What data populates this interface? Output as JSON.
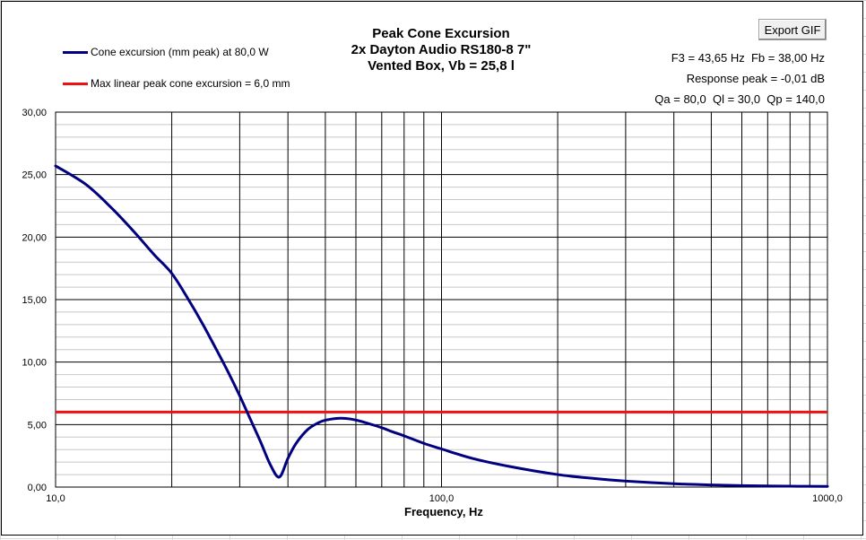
{
  "toolbar": {
    "export_label": "Export GIF"
  },
  "info": {
    "line1": "F3 = 43,65 Hz  Fb = 38,00 Hz",
    "line2": "Response peak = -0,01 dB",
    "line3": "Qa = 80,0  Ql = 30,0  Qp = 140,0"
  },
  "colors": {
    "excursion": "#000080",
    "max_linear": "#ee1111",
    "grid_major": "#000000",
    "grid_minor": "#c8c8c8"
  },
  "chart_data": {
    "type": "line",
    "title": "Peak Cone Excursion",
    "subtitle_lines": [
      "2x Dayton Audio RS180-8 7\"",
      "Vented Box, Vb = 25,8 l"
    ],
    "xlabel": "Frequency, Hz",
    "ylabel": "",
    "x_scale": "log",
    "xlim": [
      10,
      1000
    ],
    "ylim": [
      0,
      30
    ],
    "x_tick_labels": [
      "10,0",
      "100,0",
      "1000,0"
    ],
    "x_tick_values": [
      10,
      100,
      1000
    ],
    "y_tick_labels": [
      "0,00",
      "5,00",
      "10,00",
      "15,00",
      "20,00",
      "25,00",
      "30,00"
    ],
    "y_tick_values": [
      0,
      5,
      10,
      15,
      20,
      25,
      30
    ],
    "grid": true,
    "legend_position": "top-left",
    "series": [
      {
        "name": "Cone excursion (mm peak) at 80,0  W",
        "x": [
          10,
          12,
          14,
          16,
          18,
          20,
          22,
          24,
          26,
          28,
          30,
          32,
          34,
          36,
          38,
          40,
          42,
          45,
          48,
          50,
          54,
          58,
          62,
          66,
          70,
          75,
          80,
          90,
          100,
          120,
          150,
          200,
          250,
          300,
          400,
          500,
          600,
          700,
          800,
          1000
        ],
        "y": [
          25.7,
          24.2,
          22.3,
          20.4,
          18.6,
          17.1,
          15.1,
          13.1,
          11.1,
          9.2,
          7.3,
          5.4,
          3.6,
          1.8,
          0.8,
          2.3,
          3.5,
          4.6,
          5.15,
          5.35,
          5.5,
          5.45,
          5.25,
          5.0,
          4.75,
          4.4,
          4.1,
          3.5,
          3.05,
          2.3,
          1.65,
          1.0,
          0.68,
          0.48,
          0.27,
          0.17,
          0.12,
          0.09,
          0.07,
          0.05
        ]
      },
      {
        "name": "Max linear peak cone excursion = 6,0 mm",
        "x": [
          10,
          1000
        ],
        "y": [
          6.0,
          6.0
        ]
      }
    ]
  }
}
